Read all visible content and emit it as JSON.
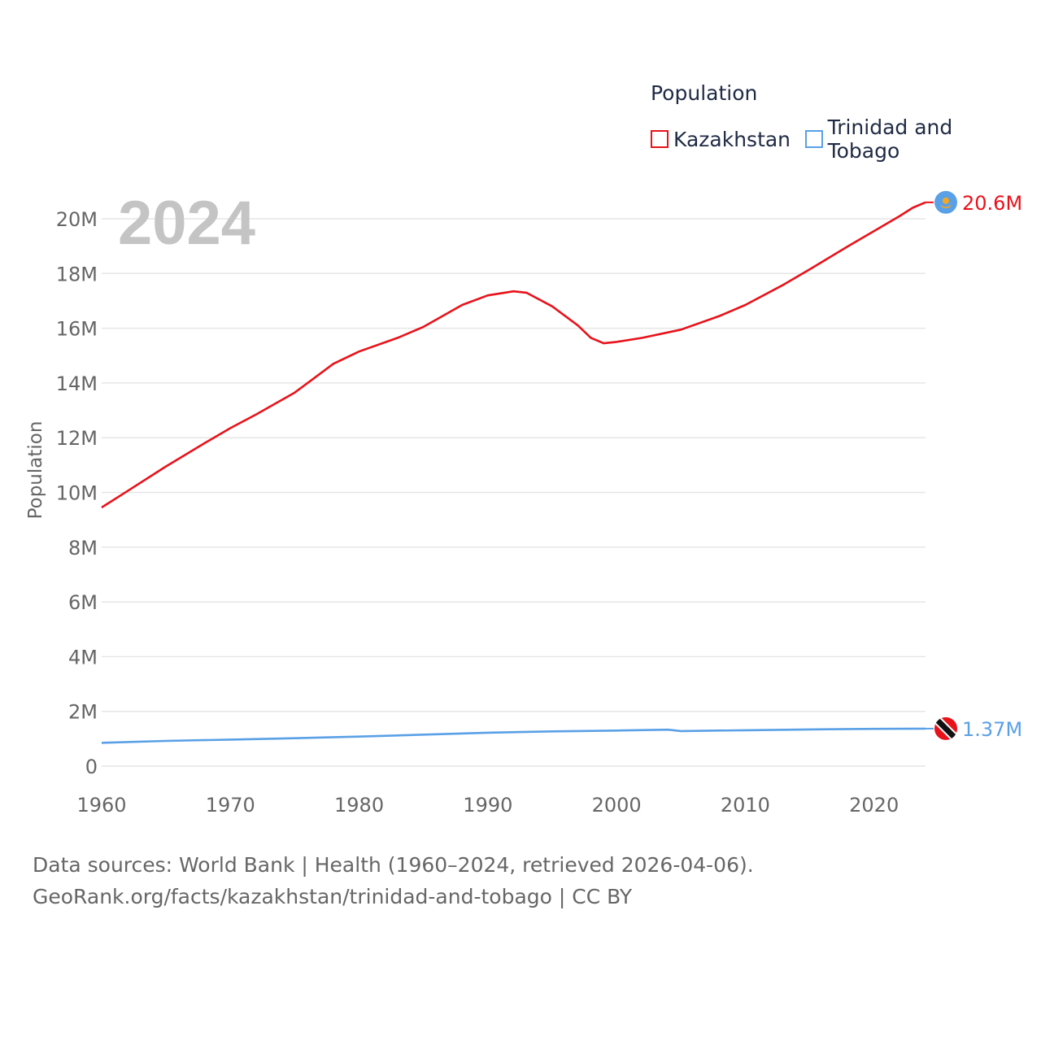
{
  "legend": {
    "title": "Population",
    "items": [
      {
        "label": "Kazakhstan",
        "color": "#e8121a"
      },
      {
        "label": "Trinidad and Tobago",
        "color": "#5aa0e6"
      }
    ]
  },
  "footer": {
    "line1": "Data sources: World Bank | Health (1960–2024, retrieved 2026-04-06).",
    "line2": "GeoRank.org/facts/kazakhstan/trinidad-and-tobago | CC BY"
  },
  "chart_data": {
    "type": "line",
    "year_label": "2024",
    "ylabel": "Population",
    "xlim": [
      1960,
      2024
    ],
    "ylim": [
      0,
      20000000
    ],
    "x_ticks": [
      1960,
      1970,
      1980,
      1990,
      2000,
      2010,
      2020
    ],
    "y_ticks": [
      {
        "value": 0,
        "label": "0"
      },
      {
        "value": 2000000,
        "label": "2M"
      },
      {
        "value": 4000000,
        "label": "4M"
      },
      {
        "value": 6000000,
        "label": "6M"
      },
      {
        "value": 8000000,
        "label": "8M"
      },
      {
        "value": 10000000,
        "label": "10M"
      },
      {
        "value": 12000000,
        "label": "12M"
      },
      {
        "value": 14000000,
        "label": "14M"
      },
      {
        "value": 16000000,
        "label": "16M"
      },
      {
        "value": 18000000,
        "label": "18M"
      },
      {
        "value": 20000000,
        "label": "20M"
      }
    ],
    "grid": true,
    "series": [
      {
        "name": "Kazakhstan",
        "color": "#e8121a",
        "end_label": "20.6M",
        "flag_icon": "kazakhstan-flag-icon",
        "x": [
          1960,
          1962,
          1965,
          1968,
          1970,
          1972,
          1975,
          1978,
          1980,
          1983,
          1985,
          1988,
          1990,
          1992,
          1993,
          1995,
          1997,
          1998,
          1999,
          2000,
          2002,
          2005,
          2008,
          2010,
          2013,
          2015,
          2018,
          2020,
          2022,
          2023,
          2024
        ],
        "values": [
          9450000,
          10050000,
          10950000,
          11800000,
          12350000,
          12850000,
          13650000,
          14700000,
          15150000,
          15650000,
          16050000,
          16850000,
          17200000,
          17350000,
          17300000,
          16800000,
          16100000,
          15650000,
          15450000,
          15500000,
          15650000,
          15950000,
          16450000,
          16850000,
          17600000,
          18150000,
          19000000,
          19550000,
          20100000,
          20400000,
          20600000
        ]
      },
      {
        "name": "Trinidad and Tobago",
        "color": "#5aa0e6",
        "end_label": "1.37M",
        "flag_icon": "trinidad-and-tobago-flag-icon",
        "x": [
          1960,
          1965,
          1970,
          1975,
          1980,
          1985,
          1990,
          1995,
          2000,
          2004,
          2005,
          2010,
          2015,
          2020,
          2024
        ],
        "values": [
          850000,
          920000,
          970000,
          1020000,
          1080000,
          1150000,
          1220000,
          1270000,
          1300000,
          1330000,
          1280000,
          1310000,
          1340000,
          1360000,
          1370000
        ]
      }
    ]
  }
}
